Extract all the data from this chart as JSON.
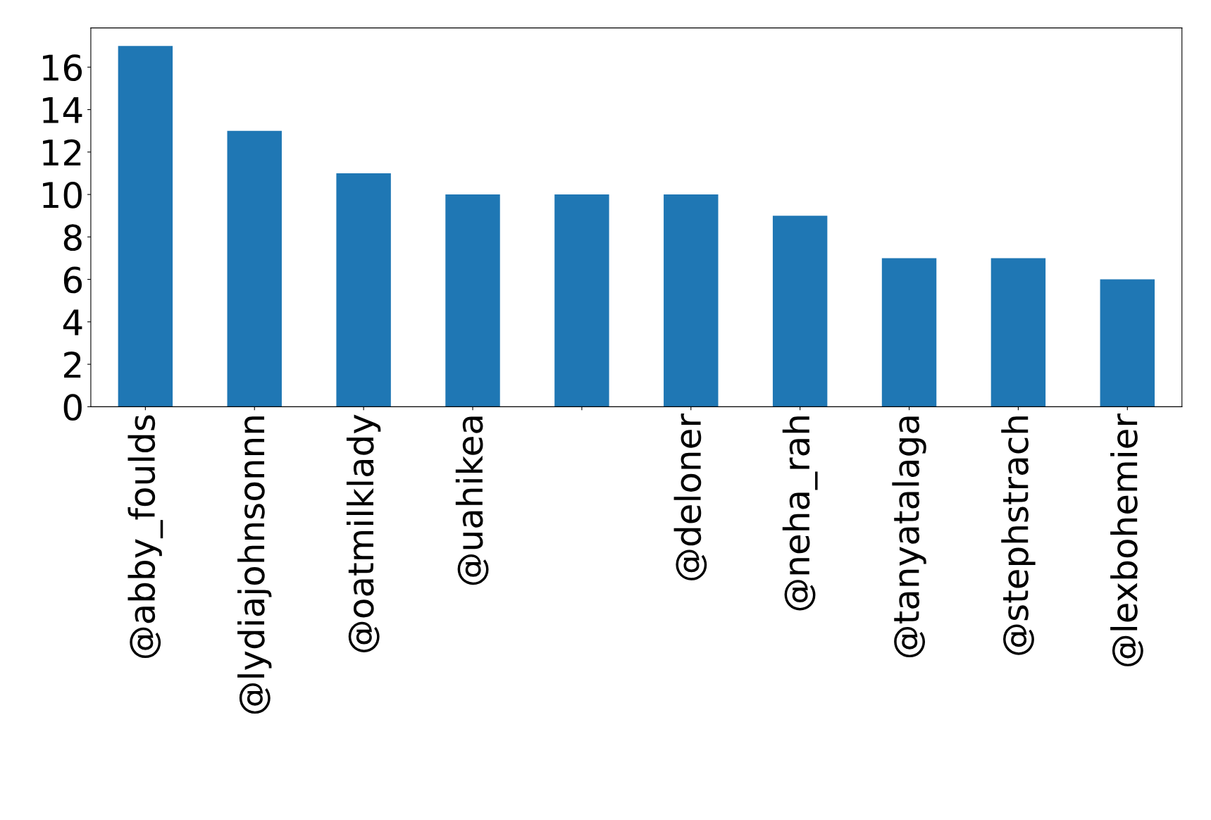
{
  "chart_data": {
    "type": "bar",
    "categories": [
      "@abby_foulds",
      "@lydiajohnsonnn",
      "@oatmilklady",
      "@uahikea",
      null,
      "@deloner",
      "@neha_rah",
      "@tanyatalaga",
      "@stephstrach",
      "@lexbohemier"
    ],
    "values": [
      17,
      13,
      11,
      10,
      10,
      10,
      9,
      7,
      7,
      6
    ],
    "color": "#1f77b4",
    "ylim": [
      0,
      17.85
    ],
    "yticks": [
      0,
      2,
      4,
      6,
      8,
      10,
      12,
      14,
      16
    ],
    "grid": false,
    "legend": false
  }
}
